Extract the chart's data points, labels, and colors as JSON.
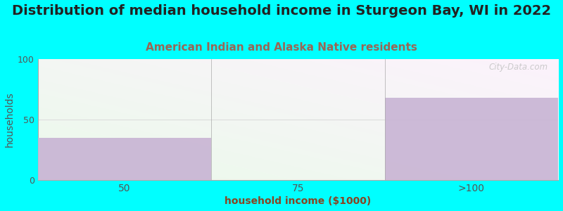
{
  "title": "Distribution of median household income in Sturgeon Bay, WI in 2022",
  "subtitle": "American Indian and Alaska Native residents",
  "xlabel": "household income ($1000)",
  "ylabel": "households",
  "categories": [
    "50",
    "75",
    ">100"
  ],
  "values": [
    35,
    0,
    68
  ],
  "bar_color": "#c8b4d4",
  "background_color": "#00FFFF",
  "ylim": [
    0,
    100
  ],
  "yticks": [
    0,
    50,
    100
  ],
  "title_fontsize": 14,
  "subtitle_fontsize": 11,
  "subtitle_color": "#996655",
  "axis_label_fontsize": 10,
  "tick_color": "#555555",
  "watermark": "City-Data.com"
}
